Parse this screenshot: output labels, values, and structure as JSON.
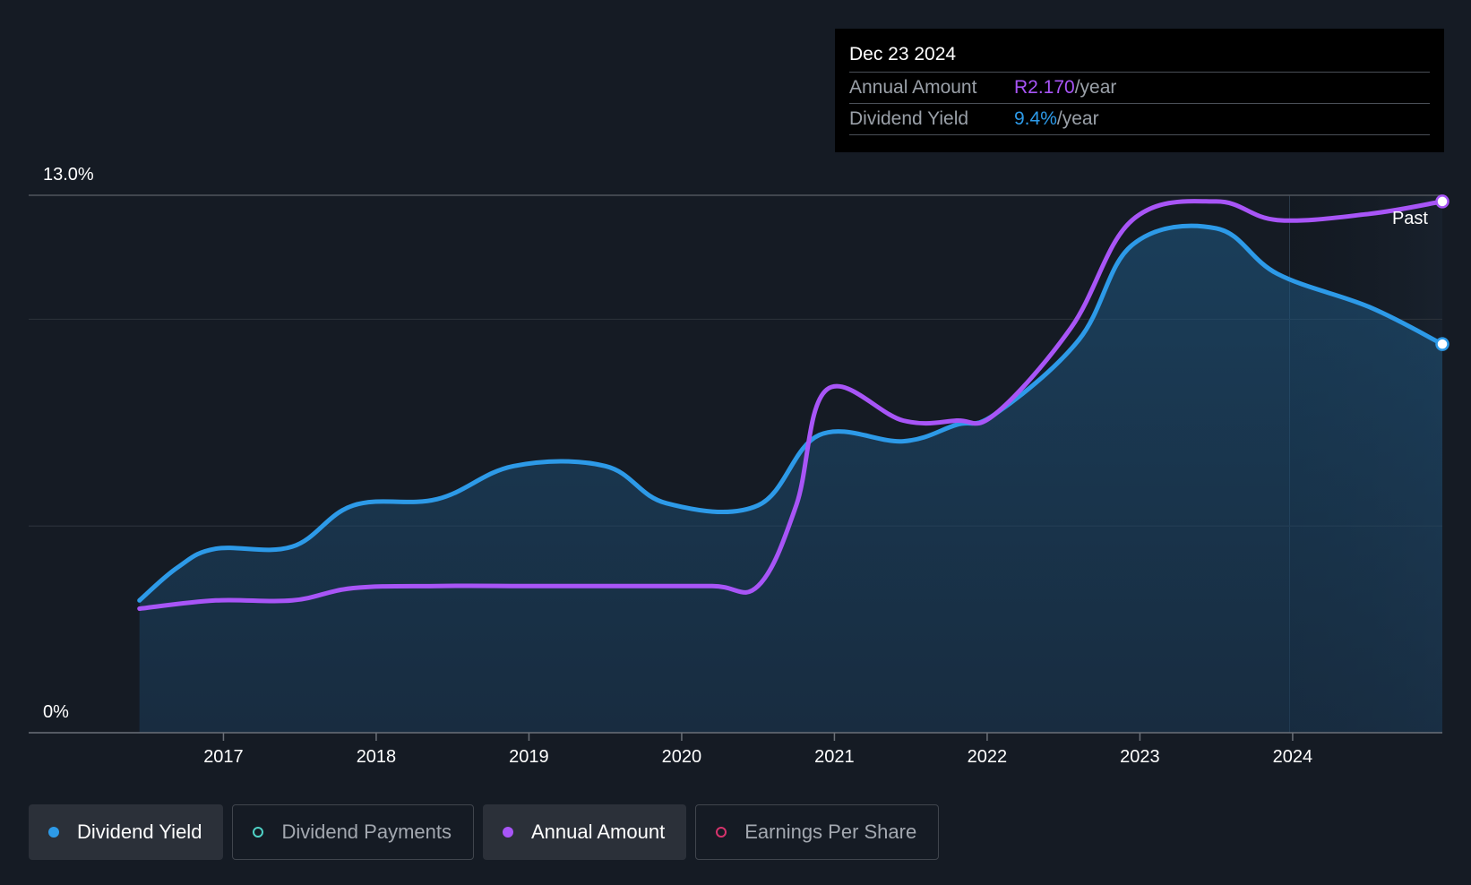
{
  "tooltip": {
    "date": "Dec 23 2024",
    "rows": [
      {
        "label": "Annual Amount",
        "value": "R2.170",
        "unit": "/year",
        "color": "#a855f7"
      },
      {
        "label": "Dividend Yield",
        "value": "9.4%",
        "unit": "/year",
        "color": "#2d9ae8"
      }
    ]
  },
  "legend": [
    {
      "label": "Dividend Yield",
      "active": true,
      "color": "#2d9ae8",
      "filled": true
    },
    {
      "label": "Dividend Payments",
      "active": false,
      "color": "#4fd1c5",
      "filled": false
    },
    {
      "label": "Annual Amount",
      "active": true,
      "color": "#a855f7",
      "filled": true
    },
    {
      "label": "Earnings Per Share",
      "active": false,
      "color": "#d6336c",
      "filled": false
    }
  ],
  "chart_data": {
    "type": "line",
    "y_tick_labels": [
      "13.0%",
      "0%"
    ],
    "ylim": [
      0,
      13
    ],
    "xlim": [
      2016.1,
      2024.98
    ],
    "x_tick_labels": [
      "2017",
      "2018",
      "2019",
      "2020",
      "2021",
      "2022",
      "2023",
      "2024"
    ],
    "x_ticks": [
      2017,
      2018,
      2019,
      2020,
      2021,
      2022,
      2023,
      2024
    ],
    "past_label": "Past",
    "past_region_start": 2023.98,
    "gridlines_y": [
      13,
      10,
      5
    ],
    "series": [
      {
        "name": "Dividend Yield",
        "color": "#2d9ae8",
        "fill": true,
        "points": [
          [
            2016.45,
            3.2
          ],
          [
            2016.7,
            4.0
          ],
          [
            2016.95,
            4.45
          ],
          [
            2017.45,
            4.5
          ],
          [
            2017.85,
            5.5
          ],
          [
            2018.4,
            5.65
          ],
          [
            2018.9,
            6.45
          ],
          [
            2019.5,
            6.45
          ],
          [
            2019.9,
            5.55
          ],
          [
            2020.5,
            5.5
          ],
          [
            2020.9,
            7.2
          ],
          [
            2021.45,
            7.05
          ],
          [
            2021.8,
            7.45
          ],
          [
            2022.05,
            7.7
          ],
          [
            2022.6,
            9.5
          ],
          [
            2022.95,
            11.8
          ],
          [
            2023.5,
            12.2
          ],
          [
            2023.9,
            11.1
          ],
          [
            2024.5,
            10.3
          ],
          [
            2024.98,
            9.4
          ]
        ]
      },
      {
        "name": "Annual Amount",
        "color": "#a855f7",
        "fill": false,
        "points": [
          [
            2016.45,
            3.0
          ],
          [
            2016.95,
            3.2
          ],
          [
            2017.45,
            3.2
          ],
          [
            2017.85,
            3.5
          ],
          [
            2018.4,
            3.55
          ],
          [
            2019.0,
            3.55
          ],
          [
            2019.6,
            3.55
          ],
          [
            2020.2,
            3.55
          ],
          [
            2020.5,
            3.55
          ],
          [
            2020.75,
            5.5
          ],
          [
            2020.95,
            8.3
          ],
          [
            2021.45,
            7.55
          ],
          [
            2021.8,
            7.55
          ],
          [
            2022.05,
            7.7
          ],
          [
            2022.55,
            9.8
          ],
          [
            2022.95,
            12.4
          ],
          [
            2023.5,
            12.85
          ],
          [
            2023.9,
            12.4
          ],
          [
            2024.5,
            12.55
          ],
          [
            2024.98,
            12.85
          ]
        ]
      }
    ]
  }
}
